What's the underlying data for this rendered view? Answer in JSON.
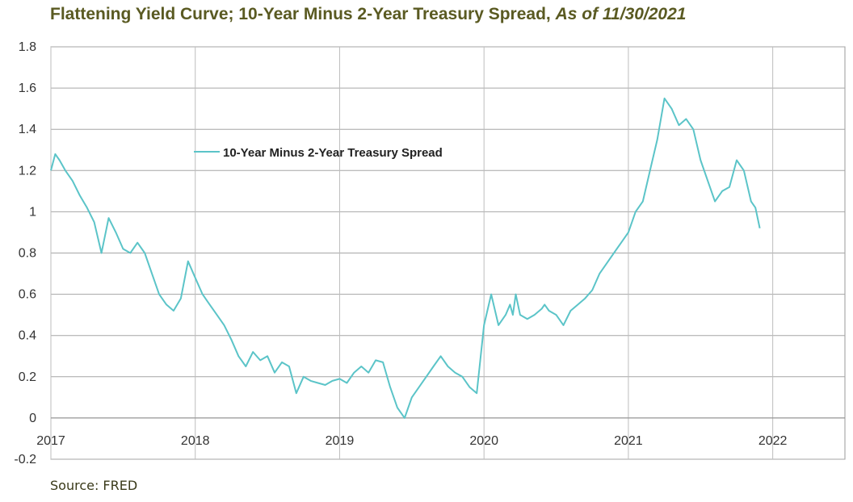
{
  "title": {
    "main": "Flattening Yield Curve; 10-Year Minus 2-Year Treasury Spread,",
    "date": "As of 11/30/2021"
  },
  "source": "Source: FRED",
  "chart_data": {
    "type": "line",
    "title": "Flattening Yield Curve; 10-Year Minus 2-Year Treasury Spread, As of 11/30/2021",
    "xlabel": "",
    "ylabel": "",
    "xlim": [
      2017.0,
      2022.5
    ],
    "ylim": [
      -0.2,
      1.8
    ],
    "x_ticks": [
      "2017",
      "2018",
      "2019",
      "2020",
      "2021",
      "2022"
    ],
    "y_ticks": [
      "1.8",
      "1.6",
      "1.4",
      "1.2",
      "1",
      "0.8",
      "0.6",
      "0.4",
      "0.2",
      "0",
      "-0.2"
    ],
    "grid": true,
    "legend_position": "top-left inside plot",
    "line_color": "#5bc4c8",
    "series": [
      {
        "name": "10-Year Minus 2-Year Treasury Spread",
        "x": [
          2017.0,
          2017.03,
          2017.06,
          2017.1,
          2017.15,
          2017.2,
          2017.25,
          2017.3,
          2017.35,
          2017.4,
          2017.45,
          2017.5,
          2017.55,
          2017.6,
          2017.65,
          2017.7,
          2017.75,
          2017.8,
          2017.85,
          2017.9,
          2017.95,
          2018.0,
          2018.05,
          2018.1,
          2018.15,
          2018.2,
          2018.25,
          2018.3,
          2018.35,
          2018.4,
          2018.45,
          2018.5,
          2018.55,
          2018.6,
          2018.65,
          2018.7,
          2018.75,
          2018.8,
          2018.85,
          2018.9,
          2018.95,
          2019.0,
          2019.05,
          2019.1,
          2019.15,
          2019.2,
          2019.25,
          2019.3,
          2019.35,
          2019.4,
          2019.45,
          2019.5,
          2019.55,
          2019.6,
          2019.65,
          2019.7,
          2019.75,
          2019.8,
          2019.85,
          2019.9,
          2019.95,
          2020.0,
          2020.05,
          2020.1,
          2020.15,
          2020.18,
          2020.2,
          2020.22,
          2020.25,
          2020.3,
          2020.35,
          2020.4,
          2020.42,
          2020.45,
          2020.5,
          2020.55,
          2020.6,
          2020.65,
          2020.7,
          2020.75,
          2020.8,
          2020.85,
          2020.9,
          2020.95,
          2021.0,
          2021.05,
          2021.1,
          2021.15,
          2021.2,
          2021.25,
          2021.3,
          2021.35,
          2021.4,
          2021.45,
          2021.5,
          2021.55,
          2021.6,
          2021.65,
          2021.7,
          2021.75,
          2021.8,
          2021.85,
          2021.88,
          2021.91
        ],
        "values": [
          1.2,
          1.28,
          1.25,
          1.2,
          1.15,
          1.08,
          1.02,
          0.95,
          0.8,
          0.97,
          0.9,
          0.82,
          0.8,
          0.85,
          0.8,
          0.7,
          0.6,
          0.55,
          0.52,
          0.58,
          0.76,
          0.68,
          0.6,
          0.55,
          0.5,
          0.45,
          0.38,
          0.3,
          0.25,
          0.32,
          0.28,
          0.3,
          0.22,
          0.27,
          0.25,
          0.12,
          0.2,
          0.18,
          0.17,
          0.16,
          0.18,
          0.19,
          0.17,
          0.22,
          0.25,
          0.22,
          0.28,
          0.27,
          0.15,
          0.05,
          0.0,
          0.1,
          0.15,
          0.2,
          0.25,
          0.3,
          0.25,
          0.22,
          0.2,
          0.15,
          0.12,
          0.45,
          0.6,
          0.45,
          0.5,
          0.55,
          0.5,
          0.6,
          0.5,
          0.48,
          0.5,
          0.53,
          0.55,
          0.52,
          0.5,
          0.45,
          0.52,
          0.55,
          0.58,
          0.62,
          0.7,
          0.75,
          0.8,
          0.85,
          0.9,
          1.0,
          1.05,
          1.2,
          1.35,
          1.55,
          1.5,
          1.42,
          1.45,
          1.4,
          1.25,
          1.15,
          1.05,
          1.1,
          1.12,
          1.25,
          1.2,
          1.05,
          1.02,
          0.92
        ]
      }
    ]
  }
}
